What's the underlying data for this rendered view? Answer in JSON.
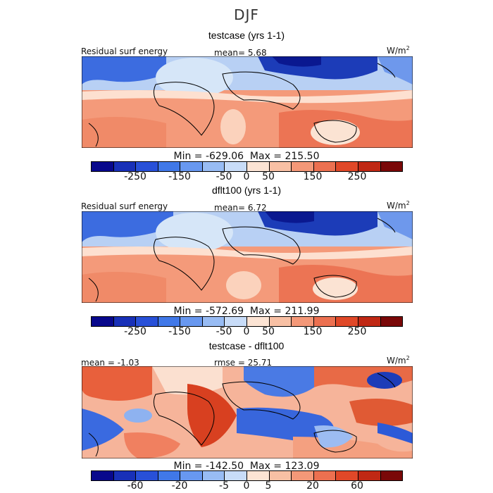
{
  "title": "DJF",
  "panels": [
    {
      "heading": "testcase (yrs 1-1)",
      "left_label": "Residual surf energy",
      "center_label": "mean=   5.68",
      "units": "W/m",
      "units_sup": "2",
      "minmax": "Min = -629.06  Max = 215.50",
      "stats": {
        "mean": 5.68,
        "min": -629.06,
        "max": 215.5
      }
    },
    {
      "heading": "dflt100 (yrs 1-1)",
      "left_label": "Residual surf energy",
      "center_label": "mean=   6.72",
      "units": "W/m",
      "units_sup": "2",
      "minmax": "Min = -572.69  Max = 211.99",
      "stats": {
        "mean": 6.72,
        "min": -572.69,
        "max": 211.99
      }
    },
    {
      "heading": "testcase - dflt100",
      "left_label": "mean =  -1.03",
      "center_label": "rmse =  25.71",
      "units": "W/m",
      "units_sup": "2",
      "minmax": "Min = -142.50  Max = 123.09",
      "stats": {
        "mean": -1.03,
        "rmse": 25.71,
        "min": -142.5,
        "max": 123.09
      }
    }
  ],
  "colorbar_colors": [
    "#08088c",
    "#1830b8",
    "#2850d8",
    "#4078e8",
    "#6898f0",
    "#98bcf4",
    "#c8dcf8",
    "#fce4d4",
    "#f8c0a4",
    "#f49878",
    "#ec7050",
    "#e04828",
    "#c02814",
    "#7a0808"
  ],
  "colorbar_abs_ticks": [
    "-250",
    "-150",
    "-50",
    "0",
    "50",
    "150",
    "250"
  ],
  "colorbar_diff_ticks": [
    "-60",
    "-20",
    "-5",
    "0",
    "5",
    "20",
    "60"
  ]
}
